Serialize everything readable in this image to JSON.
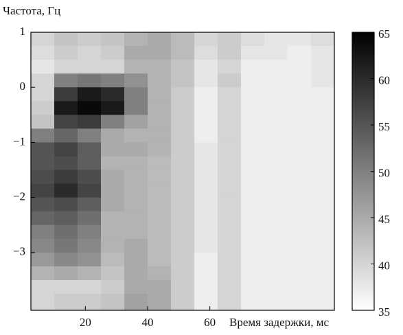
{
  "chart_data": {
    "type": "heatmap",
    "ylabel": "Частота, Гц",
    "xlabel": "Время задержки, мс",
    "x": [
      6.25,
      13.75,
      21.25,
      28.75,
      36.25,
      43.75,
      51.25,
      58.75,
      66.25,
      73.75,
      81.25,
      88.75,
      96.25
    ],
    "y": [
      0.875,
      0.625,
      0.375,
      0.125,
      -0.125,
      -0.375,
      -0.625,
      -0.875,
      -1.125,
      -1.375,
      -1.625,
      -1.875,
      -2.125,
      -2.375,
      -2.625,
      -2.875,
      -3.125,
      -3.375,
      -3.625,
      -3.875
    ],
    "z": [
      [
        40,
        42,
        41,
        42,
        44,
        45,
        43,
        40,
        41,
        39,
        38,
        38,
        39
      ],
      [
        39,
        41,
        40,
        41,
        45,
        45,
        43,
        39,
        41,
        38,
        38,
        37,
        38
      ],
      [
        38,
        40,
        40,
        40,
        44,
        44,
        42,
        38,
        40,
        37,
        37,
        37,
        38
      ],
      [
        40,
        50,
        51,
        50,
        48,
        44,
        42,
        38,
        41,
        37,
        37,
        37,
        38
      ],
      [
        40,
        58,
        62,
        60,
        50,
        44,
        41,
        37,
        40,
        37,
        37,
        37,
        37
      ],
      [
        41,
        62,
        64,
        62,
        50,
        44,
        41,
        37,
        40,
        37,
        37,
        37,
        37
      ],
      [
        42,
        57,
        58,
        50,
        46,
        44,
        41,
        37,
        40,
        37,
        37,
        37,
        37
      ],
      [
        50,
        53,
        50,
        45,
        44,
        44,
        41,
        37,
        40,
        37,
        37,
        37,
        37
      ],
      [
        55,
        57,
        54,
        45,
        45,
        44,
        41,
        38,
        40,
        37,
        37,
        37,
        37
      ],
      [
        55,
        56,
        54,
        44,
        44,
        43,
        41,
        38,
        40,
        37,
        37,
        37,
        37
      ],
      [
        56,
        58,
        56,
        45,
        44,
        43,
        41,
        38,
        40,
        37,
        37,
        37,
        37
      ],
      [
        57,
        60,
        57,
        45,
        44,
        43,
        41,
        38,
        40,
        37,
        37,
        37,
        37
      ],
      [
        55,
        56,
        54,
        45,
        44,
        43,
        41,
        38,
        40,
        37,
        37,
        37,
        37
      ],
      [
        53,
        54,
        52,
        44,
        44,
        43,
        41,
        38,
        40,
        37,
        37,
        37,
        37
      ],
      [
        50,
        52,
        50,
        44,
        44,
        43,
        41,
        38,
        40,
        37,
        37,
        37,
        37
      ],
      [
        49,
        51,
        49,
        44,
        45,
        43,
        41,
        38,
        40,
        37,
        37,
        37,
        37
      ],
      [
        47,
        49,
        48,
        43,
        45,
        43,
        41,
        37,
        40,
        37,
        37,
        37,
        37
      ],
      [
        44,
        45,
        44,
        42,
        45,
        44,
        41,
        37,
        40,
        37,
        37,
        37,
        37
      ],
      [
        40,
        40,
        40,
        41,
        45,
        45,
        41,
        37,
        40,
        37,
        37,
        37,
        37
      ],
      [
        40,
        41,
        41,
        42,
        46,
        45,
        41,
        37,
        40,
        37,
        37,
        37,
        37
      ]
    ],
    "xlim": [
      2.5,
      100
    ],
    "ylim": [
      -4.05,
      1
    ],
    "xticks": [
      20,
      40,
      60
    ],
    "yticks": [
      {
        "value": -3,
        "label": "−3"
      },
      {
        "value": -2,
        "label": "−2"
      },
      {
        "value": -1,
        "label": "−1"
      },
      0,
      1
    ],
    "clim": [
      35,
      65
    ],
    "cticks": [
      35,
      40,
      45,
      50,
      55,
      60,
      65
    ],
    "cmap": [
      "#ffffff",
      "#000000"
    ]
  }
}
